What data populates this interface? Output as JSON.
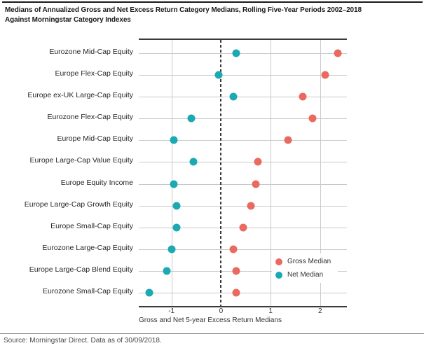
{
  "header": {
    "title_line1": "Medians of Annualized Gross and Net Excess Return Category Medians, Rolling Five-Year Periods 2002–2018",
    "title_line2": "Against Morningstar Category Indexes"
  },
  "chart_data": {
    "type": "scatter",
    "title": "Medians of Annualized Gross and Net Excess Return Category Medians, Rolling Five-Year Periods 2002–2018 Against Morningstar Category Indexes",
    "categories": [
      "Eurozone Mid-Cap Equity",
      "Europe Flex-Cap Equity",
      "Europe ex-UK Large-Cap Equity",
      "Eurozone Flex-Cap Equity",
      "Europe Mid-Cap Equity",
      "Europe Large-Cap Value Equity",
      "Europe Equity Income",
      "Europe Large-Cap Growth Equity",
      "Europe Small-Cap Equity",
      "Eurozone Large-Cap Equity",
      "Europe Large-Cap Blend Equity",
      "Eurozone Small-Cap Equity"
    ],
    "series": [
      {
        "name": "Gross Median",
        "color": "#ea6a5f",
        "values": [
          2.35,
          2.1,
          1.65,
          1.85,
          1.35,
          0.75,
          0.7,
          0.6,
          0.45,
          0.25,
          0.3,
          0.3
        ]
      },
      {
        "name": "Net Median",
        "color": "#1ba9b2",
        "values": [
          0.3,
          -0.05,
          0.25,
          -0.6,
          -0.95,
          -0.55,
          -0.95,
          -0.9,
          -0.9,
          -1.0,
          -1.1,
          -1.45
        ]
      }
    ],
    "xlabel": "Gross and Net 5-year Excess Return Medians",
    "x_ticks": [
      -1,
      0,
      1,
      2
    ],
    "xlim": [
      -1.66,
      2.54
    ],
    "zero_line": "dashed",
    "grid": true,
    "legend_position": "inside-right-bottom"
  },
  "footer": {
    "source": "Source: Morningstar Direct. Data as of 30/09/2018."
  },
  "colors": {
    "gross": "#ea6a5f",
    "net": "#1ba9b2",
    "gridline": "#c9c9c9",
    "axis": "#3a3a3a"
  }
}
